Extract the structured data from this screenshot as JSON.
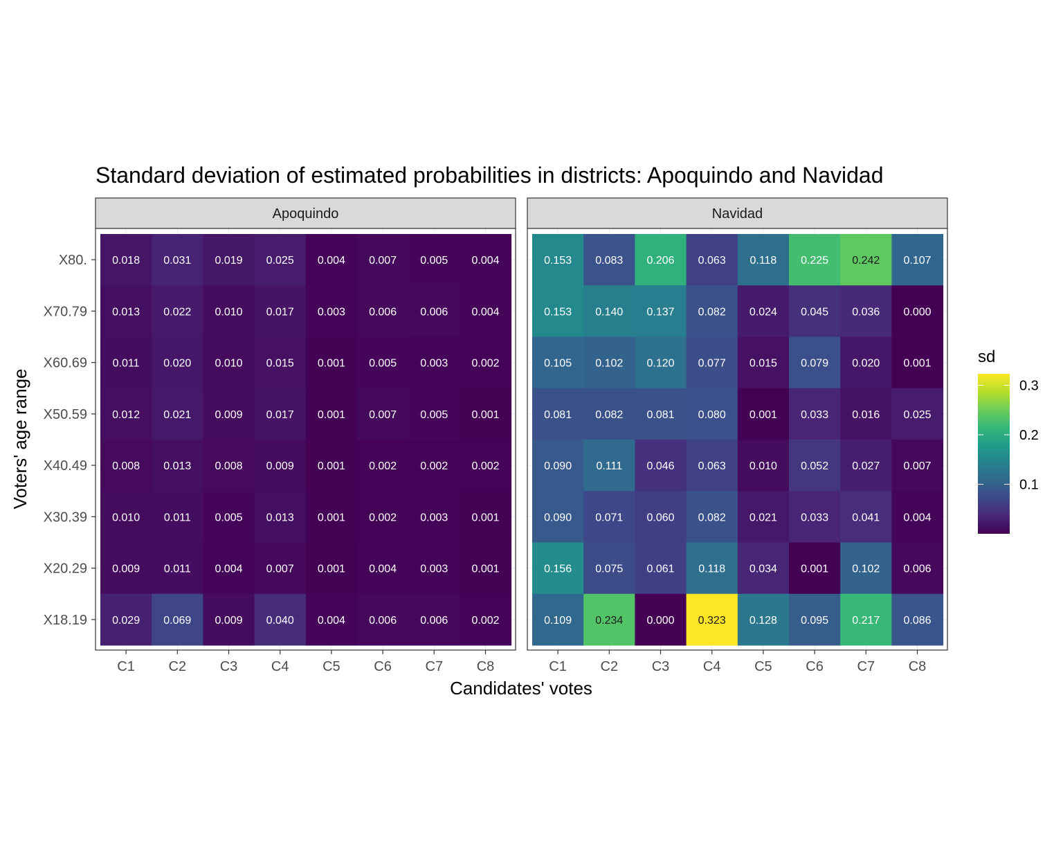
{
  "chart_data": {
    "type": "heatmap",
    "title": "Standard deviation of estimated probabilities in districts: Apoquindo and Navidad",
    "xlabel": "Candidates' votes",
    "ylabel": "Voters' age range",
    "x_categories": [
      "C1",
      "C2",
      "C3",
      "C4",
      "C5",
      "C6",
      "C7",
      "C8"
    ],
    "y_categories": [
      "X80.",
      "X70.79",
      "X60.69",
      "X50.59",
      "X40.49",
      "X30.39",
      "X20.29",
      "X18.19"
    ],
    "panels": [
      {
        "name": "Apoquindo",
        "values": [
          [
            0.018,
            0.031,
            0.019,
            0.025,
            0.004,
            0.007,
            0.005,
            0.004
          ],
          [
            0.013,
            0.022,
            0.01,
            0.017,
            0.003,
            0.006,
            0.006,
            0.004
          ],
          [
            0.011,
            0.02,
            0.01,
            0.015,
            0.001,
            0.005,
            0.003,
            0.002
          ],
          [
            0.012,
            0.021,
            0.009,
            0.017,
            0.001,
            0.007,
            0.005,
            0.001
          ],
          [
            0.008,
            0.013,
            0.008,
            0.009,
            0.001,
            0.002,
            0.002,
            0.002
          ],
          [
            0.01,
            0.011,
            0.005,
            0.013,
            0.001,
            0.002,
            0.003,
            0.001
          ],
          [
            0.009,
            0.011,
            0.004,
            0.007,
            0.001,
            0.004,
            0.003,
            0.001
          ],
          [
            0.029,
            0.069,
            0.009,
            0.04,
            0.004,
            0.006,
            0.006,
            0.002
          ]
        ]
      },
      {
        "name": "Navidad",
        "values": [
          [
            0.153,
            0.083,
            0.206,
            0.063,
            0.118,
            0.225,
            0.242,
            0.107
          ],
          [
            0.153,
            0.14,
            0.137,
            0.082,
            0.024,
            0.045,
            0.036,
            0.0
          ],
          [
            0.105,
            0.102,
            0.12,
            0.077,
            0.015,
            0.079,
            0.02,
            0.001
          ],
          [
            0.081,
            0.082,
            0.081,
            0.08,
            0.001,
            0.033,
            0.016,
            0.025
          ],
          [
            0.09,
            0.111,
            0.046,
            0.063,
            0.01,
            0.052,
            0.027,
            0.007
          ],
          [
            0.09,
            0.071,
            0.06,
            0.082,
            0.021,
            0.033,
            0.041,
            0.004
          ],
          [
            0.156,
            0.075,
            0.061,
            0.118,
            0.034,
            0.001,
            0.102,
            0.006
          ],
          [
            0.109,
            0.234,
            0.0,
            0.323,
            0.128,
            0.095,
            0.217,
            0.086
          ]
        ]
      }
    ],
    "legend": {
      "title": "sd",
      "range": [
        0.0,
        0.323
      ],
      "ticks": [
        0.1,
        0.2,
        0.3
      ],
      "tick_labels": [
        "0.1",
        "0.2",
        "0.3"
      ],
      "placement": "right",
      "palette": [
        "#440154",
        "#482878",
        "#3e4989",
        "#31688e",
        "#26828e",
        "#1f9e89",
        "#35b779",
        "#6ece58",
        "#b5de2b",
        "#fde725"
      ]
    },
    "grid": true
  }
}
